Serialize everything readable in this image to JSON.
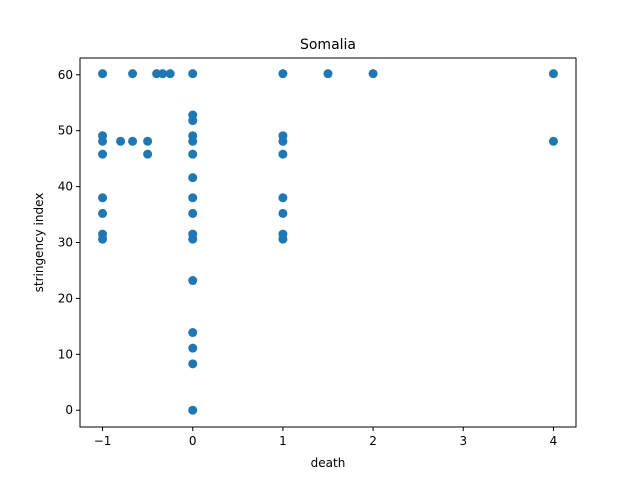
{
  "chart_data": {
    "type": "scatter",
    "title": "Somalia",
    "xlabel": "death",
    "ylabel": "stringency index",
    "xlim": [
      -1.25,
      4.25
    ],
    "ylim": [
      -3,
      63
    ],
    "xticks": [
      -1,
      0,
      1,
      2,
      3,
      4
    ],
    "xtick_labels": [
      "−1",
      "0",
      "1",
      "2",
      "3",
      "4"
    ],
    "yticks": [
      0,
      10,
      20,
      30,
      40,
      50,
      60
    ],
    "ytick_labels": [
      "0",
      "10",
      "20",
      "30",
      "40",
      "50",
      "60"
    ],
    "grid": false,
    "marker_color": "#1f77b4",
    "points": [
      {
        "x": -1,
        "y": 60.2
      },
      {
        "x": -1,
        "y": 49.1
      },
      {
        "x": -1,
        "y": 48.1
      },
      {
        "x": -1,
        "y": 45.8
      },
      {
        "x": -1,
        "y": 38.0
      },
      {
        "x": -1,
        "y": 35.2
      },
      {
        "x": -1,
        "y": 31.5
      },
      {
        "x": -1,
        "y": 30.6
      },
      {
        "x": -0.667,
        "y": 60.2
      },
      {
        "x": -0.667,
        "y": 48.1
      },
      {
        "x": -0.8,
        "y": 48.1
      },
      {
        "x": -0.5,
        "y": 48.1
      },
      {
        "x": -0.5,
        "y": 45.8
      },
      {
        "x": -0.4,
        "y": 60.2
      },
      {
        "x": -0.333,
        "y": 60.2
      },
      {
        "x": -0.25,
        "y": 60.2
      },
      {
        "x": 0,
        "y": 60.2
      },
      {
        "x": 0,
        "y": 52.8
      },
      {
        "x": 0,
        "y": 51.8
      },
      {
        "x": 0,
        "y": 49.1
      },
      {
        "x": 0,
        "y": 48.1
      },
      {
        "x": 0,
        "y": 45.8
      },
      {
        "x": 0,
        "y": 41.6
      },
      {
        "x": 0,
        "y": 38.0
      },
      {
        "x": 0,
        "y": 35.2
      },
      {
        "x": 0,
        "y": 31.5
      },
      {
        "x": 0,
        "y": 30.6
      },
      {
        "x": 0,
        "y": 23.2
      },
      {
        "x": 0,
        "y": 13.9
      },
      {
        "x": 0,
        "y": 11.1
      },
      {
        "x": 0,
        "y": 8.3
      },
      {
        "x": 0,
        "y": 0.0
      },
      {
        "x": 1,
        "y": 60.2
      },
      {
        "x": 1,
        "y": 49.1
      },
      {
        "x": 1,
        "y": 48.1
      },
      {
        "x": 1,
        "y": 45.8
      },
      {
        "x": 1,
        "y": 38.0
      },
      {
        "x": 1,
        "y": 35.2
      },
      {
        "x": 1,
        "y": 31.5
      },
      {
        "x": 1,
        "y": 30.6
      },
      {
        "x": 1.5,
        "y": 60.2
      },
      {
        "x": 2,
        "y": 60.2
      },
      {
        "x": 4,
        "y": 60.2
      },
      {
        "x": 4,
        "y": 48.1
      }
    ]
  }
}
